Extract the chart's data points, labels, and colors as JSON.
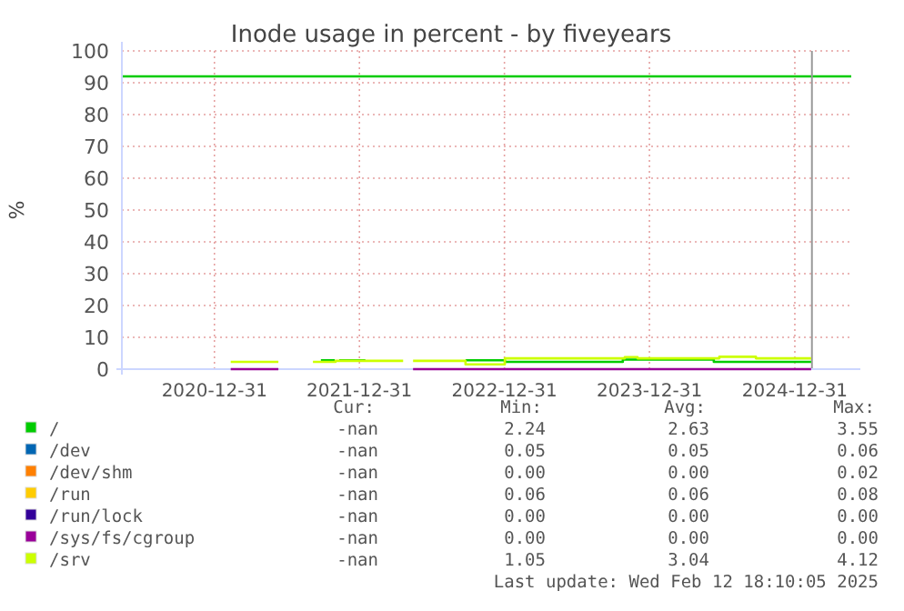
{
  "chart_data": {
    "type": "step",
    "title": "Inode usage in percent - by fiveyears",
    "ylabel": "%",
    "xlim": [
      "2020-05-12",
      "2025-05-22"
    ],
    "xticks": [
      "2020-12-31",
      "2021-12-31",
      "2022-12-31",
      "2023-12-31",
      "2024-12-31"
    ],
    "ylim": [
      0,
      100
    ],
    "yticks": [
      0,
      10,
      20,
      30,
      40,
      50,
      60,
      70,
      80,
      90,
      100
    ],
    "grid": true,
    "legend": "bottom",
    "series": [
      {
        "name": "/",
        "color": "#00cc00",
        "x": [
          "2021-09-25",
          "2021-10-30",
          "2021-11-10",
          "2022-01-15",
          "2022-09-24",
          "2023-01-01",
          "2023-10-25",
          "2024-06-10",
          "2025-02-10"
        ],
        "values": [
          2.8,
          null,
          2.8,
          null,
          2.8,
          2.3,
          3.0,
          2.3,
          2.3
        ]
      },
      {
        "name": "/dev",
        "color": "#0066b3",
        "values": [
          null
        ]
      },
      {
        "name": "/dev/shm",
        "color": "#ff8000",
        "values": [
          null
        ]
      },
      {
        "name": "/run",
        "color": "#ffcc00",
        "values": [
          null
        ]
      },
      {
        "name": "/run/lock",
        "color": "#330099",
        "values": [
          null
        ]
      },
      {
        "name": "/sys/fs/cgroup",
        "color": "#990099",
        "x": [
          "2021-02-10",
          "2021-06-10",
          "2022-05-15",
          "2025-02-10"
        ],
        "values": [
          0,
          null,
          0,
          0
        ]
      },
      {
        "name": "/srv",
        "color": "#ccff00",
        "x": [
          "2021-02-10",
          "2021-06-10",
          "2021-09-05",
          "2021-11-01",
          "2022-04-20",
          "2022-05-15",
          "2022-09-24",
          "2023-01-01",
          "2023-10-30",
          "2023-12-01",
          "2024-06-24",
          "2024-09-24",
          "2025-02-10"
        ],
        "values": [
          2.3,
          null,
          2.3,
          2.6,
          null,
          2.6,
          1.5,
          3.4,
          3.8,
          3.4,
          3.9,
          3.4,
          3.4
        ]
      }
    ],
    "ref_lines": [
      {
        "axis": "y",
        "value": 92,
        "color": "#00cc00"
      },
      {
        "axis": "x",
        "value": "2025-02-12",
        "color": "#999999"
      }
    ],
    "annotations": [
      "Cur:",
      "Min:",
      "Avg:",
      "Max:",
      "-nan",
      "2.24",
      "2.63",
      "3.55",
      "-nan",
      "0.05",
      "0.05",
      "0.06",
      "-nan",
      "0.00",
      "0.00",
      "0.02",
      "-nan",
      "0.06",
      "0.06",
      "0.08",
      "-nan",
      "0.00",
      "0.00",
      "0.00",
      "-nan",
      "0.00",
      "0.00",
      "0.00",
      "-nan",
      "1.05",
      "3.04",
      "4.12",
      "Last update: Wed Feb 12 18:10:05 2025"
    ]
  }
}
